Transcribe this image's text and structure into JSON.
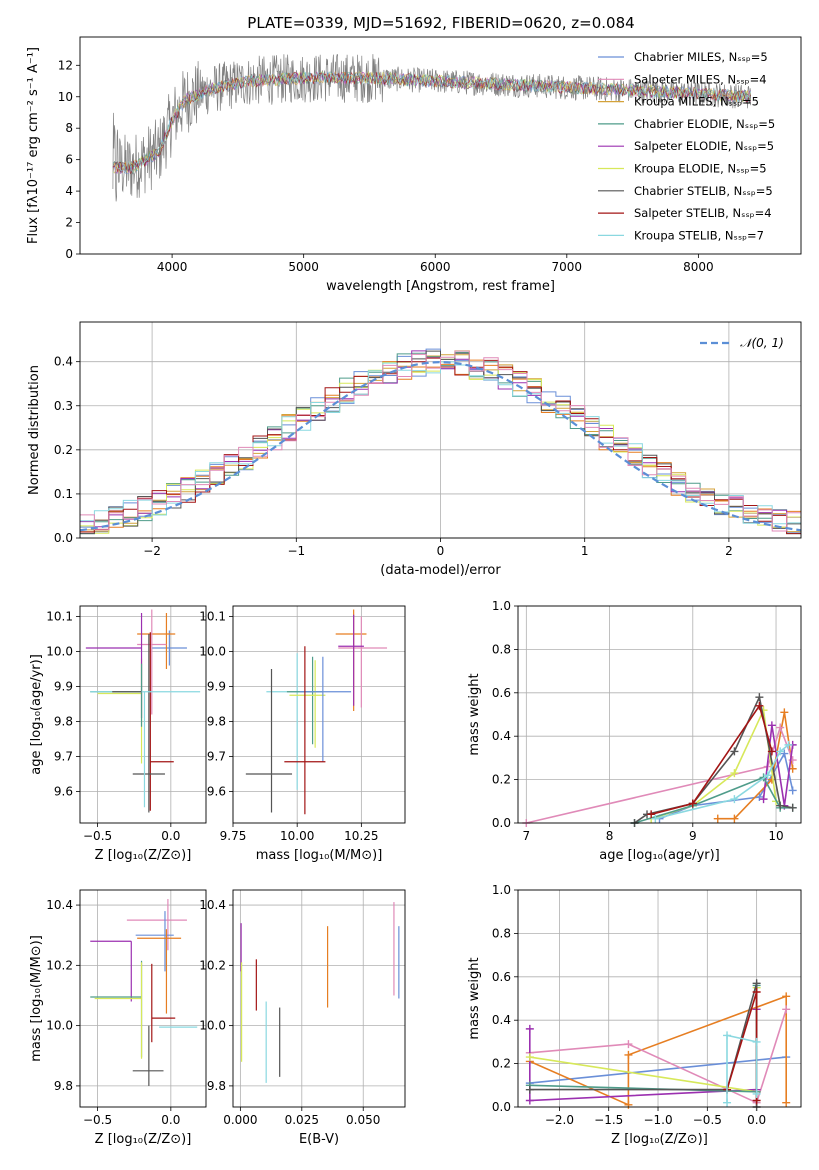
{
  "figure": {
    "title": "PLATE=0339, MJD=51692, FIBERID=0620, z=0.084"
  },
  "colors": {
    "data": "#808080",
    "series": [
      "#6a8fd8",
      "#e67e22",
      "#d4a23a",
      "#4f9c8a",
      "#9b30b0",
      "#d7e85a",
      "#555555",
      "#a31515",
      "#8ad8e0",
      "#e08ab8"
    ]
  },
  "chart_data": [
    {
      "id": "spectrum",
      "type": "line",
      "xlabel": "wavelength [Angstrom, rest frame]",
      "ylabel": "Flux [fλ10⁻¹⁷ erg cm⁻² s⁻¹ A⁻¹]",
      "xlim": [
        3300,
        8780
      ],
      "ylim": [
        0,
        13.8
      ],
      "xticks": [
        "4000",
        "5000",
        "6000",
        "7000",
        "8000"
      ],
      "yticks": [
        "0",
        "2",
        "4",
        "6",
        "8",
        "10",
        "12"
      ],
      "grid": false,
      "legend_position": "right",
      "data_range": [
        3550,
        8400
      ],
      "legend": [
        {
          "label": "Chabrier MILES, Nₛₛₚ=5",
          "color": "#6a8fd8"
        },
        {
          "label": "Salpeter MILES, Nₛₛₚ=4",
          "color": "#e08ab8"
        },
        {
          "label": "Kroupa MILES, Nₛₛₚ=5",
          "color": "#d4a23a"
        },
        {
          "label": "Chabrier ELODIE, Nₛₛₚ=5",
          "color": "#4f9c8a"
        },
        {
          "label": "Salpeter ELODIE, Nₛₛₚ=5",
          "color": "#9b30b0"
        },
        {
          "label": "Kroupa ELODIE, Nₛₛₚ=5",
          "color": "#d7e85a"
        },
        {
          "label": "Chabrier STELIB, Nₛₛₚ=5",
          "color": "#555555"
        },
        {
          "label": "Salpeter STELIB, Nₛₛₚ=4",
          "color": "#a31515"
        },
        {
          "label": "Kroupa STELIB, Nₛₛₚ=7",
          "color": "#8ad8e0"
        }
      ],
      "continuum": [
        [
          3550,
          5.5
        ],
        [
          3700,
          5.5
        ],
        [
          3900,
          6.5
        ],
        [
          4000,
          8.5
        ],
        [
          4100,
          9.8
        ],
        [
          4300,
          10.5
        ],
        [
          4600,
          11.0
        ],
        [
          5000,
          11.2
        ],
        [
          5500,
          11.2
        ],
        [
          6000,
          11.0
        ],
        [
          6500,
          10.8
        ],
        [
          7000,
          10.6
        ],
        [
          7500,
          10.4
        ],
        [
          8000,
          10.2
        ],
        [
          8400,
          10.0
        ]
      ]
    },
    {
      "id": "residuals",
      "type": "step",
      "xlabel": "(data-model)/error",
      "ylabel": "Normed distribution",
      "xlim": [
        -2.5,
        2.5
      ],
      "ylim": [
        0,
        0.49
      ],
      "xticks": [
        "−2",
        "−1",
        "0",
        "1",
        "2"
      ],
      "yticks": [
        "0.0",
        "0.1",
        "0.2",
        "0.3",
        "0.4"
      ],
      "grid": true,
      "legend_position": "top-right",
      "legend": "𝒩(0, 1)",
      "gaussian": {
        "mu": 0,
        "sigma": 1,
        "color": "#5b8fd6"
      },
      "bin_width": 0.1
    },
    {
      "id": "age-vs-Z",
      "type": "errorbar",
      "xlabel": "Z [log₁₀(Z/Z⊙)]",
      "ylabel": "age  [log₁₀(age/yr)]",
      "xlim": [
        -0.62,
        0.24
      ],
      "ylim": [
        9.51,
        10.13
      ],
      "xticks": [
        "−0.5",
        "0.0"
      ],
      "yticks": [
        "9.6",
        "9.7",
        "9.8",
        "9.9",
        "10.0",
        "10.1"
      ],
      "grid": true,
      "points": [
        {
          "x": -0.01,
          "y": 10.01,
          "xerr": [
            0.12,
            0.12
          ],
          "yerr": [
            0.05,
            0.05
          ],
          "c": 0
        },
        {
          "x": -0.03,
          "y": 10.05,
          "xerr": [
            0.2,
            0.06
          ],
          "yerr": [
            0.1,
            0.06
          ],
          "c": 1
        },
        {
          "x": -0.2,
          "y": 9.88,
          "xerr": [
            0.3,
            0.0
          ],
          "yerr": [
            0.2,
            0.1
          ],
          "c": 5
        },
        {
          "x": -0.13,
          "y": 10.02,
          "xerr": [
            0.1,
            0.1
          ],
          "yerr": [
            0.2,
            0.1
          ],
          "c": 9
        },
        {
          "x": -0.2,
          "y": 10.01,
          "xerr": [
            0.38,
            0.0
          ],
          "yerr": [
            0.2,
            0.1
          ],
          "c": 4
        },
        {
          "x": -0.2,
          "y": 9.885,
          "xerr": [
            0.35,
            0.0
          ],
          "yerr": [
            0.1,
            0.08
          ],
          "c": 3
        },
        {
          "x": -0.14,
          "y": 9.685,
          "xerr": [
            0.0,
            0.16
          ],
          "yerr": [
            0.14,
            0.37
          ],
          "c": 7
        },
        {
          "x": -0.15,
          "y": 9.65,
          "xerr": [
            0.11,
            0.11
          ],
          "yerr": [
            0.11,
            0.4
          ],
          "c": 6
        },
        {
          "x": -0.18,
          "y": 9.885,
          "xerr": [
            0.37,
            0.38
          ],
          "yerr": [
            0.33,
            0.0
          ],
          "c": 8
        },
        {
          "x": -0.4,
          "y": 9.885,
          "xerr": [
            0.0,
            0.2
          ],
          "yerr": [
            0.0,
            0.0
          ],
          "c": 6
        }
      ]
    },
    {
      "id": "age-vs-mass",
      "type": "errorbar",
      "xlabel": "mass [log₁₀(M/M⊙)]",
      "ylabel": "",
      "xlim": [
        9.75,
        10.42
      ],
      "ylim": [
        9.51,
        10.13
      ],
      "xticks": [
        "9.75",
        "10.00",
        "10.25"
      ],
      "yticks": [
        "9.6",
        "9.7",
        "9.8",
        "9.9",
        "10.0",
        "10.1"
      ],
      "grid": true,
      "points": [
        {
          "x": 10.22,
          "y": 10.05,
          "xerr": [
            0.07,
            0.05
          ],
          "yerr": [
            0.22,
            0.07
          ],
          "c": 1
        },
        {
          "x": 10.25,
          "y": 10.01,
          "xerr": [
            0.09,
            0.1
          ],
          "yerr": [
            0.17,
            0.09
          ],
          "c": 9
        },
        {
          "x": 10.22,
          "y": 10.015,
          "xerr": [
            0.06,
            0.04
          ],
          "yerr": [
            0.17,
            0.09
          ],
          "c": 4
        },
        {
          "x": 10.0,
          "y": 9.885,
          "xerr": [
            0.12,
            0.06
          ],
          "yerr": [
            0.28,
            0.11
          ],
          "c": 8
        },
        {
          "x": 10.06,
          "y": 9.885,
          "xerr": [
            0.1,
            0.04
          ],
          "yerr": [
            0.15,
            0.1
          ],
          "c": 3
        },
        {
          "x": 10.07,
          "y": 9.875,
          "xerr": [
            0.1,
            0.04
          ],
          "yerr": [
            0.15,
            0.1
          ],
          "c": 5
        },
        {
          "x": 10.1,
          "y": 9.885,
          "xerr": [
            0.09,
            0.11
          ],
          "yerr": [
            0.2,
            0.1
          ],
          "c": 0
        },
        {
          "x": 10.03,
          "y": 9.685,
          "xerr": [
            0.08,
            0.08
          ],
          "yerr": [
            0.15,
            0.33
          ],
          "c": 7
        },
        {
          "x": 9.9,
          "y": 9.65,
          "xerr": [
            0.1,
            0.08
          ],
          "yerr": [
            0.11,
            0.3
          ],
          "c": 6
        }
      ]
    },
    {
      "id": "mass-weight-vs-age",
      "type": "line",
      "xlabel": "age  [log₁₀(age/yr)]",
      "ylabel": "mass weight",
      "xlim": [
        6.9,
        10.3
      ],
      "ylim": [
        0,
        1.0
      ],
      "xticks": [
        "7",
        "8",
        "9",
        "10"
      ],
      "yticks": [
        "0.0",
        "0.2",
        "0.4",
        "0.6",
        "0.8",
        "1.0"
      ],
      "grid": true,
      "series": [
        {
          "c": 0,
          "x": [
            8.6,
            9.0,
            9.8,
            10.1,
            10.2
          ],
          "y": [
            0.02,
            0.08,
            0.12,
            0.32,
            0.15
          ]
        },
        {
          "c": 1,
          "x": [
            9.3,
            9.5,
            9.95,
            10.1,
            10.2
          ],
          "y": [
            0.02,
            0.02,
            0.2,
            0.51,
            0.25
          ]
        },
        {
          "c": 9,
          "x": [
            7.0,
            9.9,
            10.05,
            10.2
          ],
          "y": [
            0.0,
            0.26,
            0.44,
            0.29
          ]
        },
        {
          "c": 4,
          "x": [
            9.85,
            9.95,
            10.1,
            10.2
          ],
          "y": [
            0.11,
            0.45,
            0.08,
            0.36
          ]
        },
        {
          "c": 5,
          "x": [
            8.5,
            9.0,
            9.5,
            9.85,
            10.0
          ],
          "y": [
            0.02,
            0.08,
            0.23,
            0.52,
            0.1
          ]
        },
        {
          "c": 3,
          "x": [
            8.3,
            9.0,
            9.85,
            10.05,
            10.2
          ],
          "y": [
            0.0,
            0.08,
            0.21,
            0.07,
            0.07
          ]
        },
        {
          "c": 6,
          "x": [
            8.3,
            8.45,
            9.0,
            9.5,
            9.8,
            10.05,
            10.2
          ],
          "y": [
            0.0,
            0.04,
            0.09,
            0.33,
            0.58,
            0.08,
            0.07
          ]
        },
        {
          "c": 7,
          "x": [
            8.5,
            9.0,
            9.8,
            9.95
          ],
          "y": [
            0.04,
            0.09,
            0.54,
            0.33
          ]
        },
        {
          "c": 8,
          "x": [
            8.55,
            9.5,
            9.9,
            10.05,
            10.15
          ],
          "y": [
            0.02,
            0.11,
            0.22,
            0.33,
            0.36
          ]
        }
      ]
    },
    {
      "id": "mass-vs-Z",
      "type": "errorbar",
      "xlabel": "Z [log₁₀(Z/Z⊙)]",
      "ylabel": "mass [log₁₀(M/M⊙)]",
      "xlim": [
        -0.62,
        0.24
      ],
      "ylim": [
        9.73,
        10.45
      ],
      "xticks": [
        "−0.5",
        "0.0"
      ],
      "yticks": [
        "9.8",
        "10.0",
        "10.2",
        "10.4"
      ],
      "grid": true,
      "points": [
        {
          "x": -0.02,
          "y": 10.35,
          "xerr": [
            0.28,
            0.13
          ],
          "yerr": [
            0.1,
            0.07
          ],
          "c": 9
        },
        {
          "x": -0.04,
          "y": 10.3,
          "xerr": [
            0.2,
            0.06
          ],
          "yerr": [
            0.12,
            0.08
          ],
          "c": 0
        },
        {
          "x": -0.03,
          "y": 10.29,
          "xerr": [
            0.2,
            0.1
          ],
          "yerr": [
            0.25,
            0.03
          ],
          "c": 1
        },
        {
          "x": -0.27,
          "y": 10.28,
          "xerr": [
            0.28,
            0.0
          ],
          "yerr": [
            0.2,
            0.0
          ],
          "c": 4
        },
        {
          "x": -0.2,
          "y": 10.095,
          "xerr": [
            0.35,
            0.0
          ],
          "yerr": [
            0.2,
            0.12
          ],
          "c": 3
        },
        {
          "x": -0.2,
          "y": 10.09,
          "xerr": [
            0.32,
            0.0
          ],
          "yerr": [
            0.2,
            0.12
          ],
          "c": 5
        },
        {
          "x": -0.13,
          "y": 10.025,
          "xerr": [
            0.0,
            0.16
          ],
          "yerr": [
            0.08,
            0.18
          ],
          "c": 7
        },
        {
          "x": -0.02,
          "y": 9.995,
          "xerr": [
            0.06,
            0.2
          ],
          "yerr": [
            0.0,
            0.0
          ],
          "c": 8
        },
        {
          "x": -0.15,
          "y": 9.85,
          "xerr": [
            0.11,
            0.1
          ],
          "yerr": [
            0.05,
            0.15
          ],
          "c": 6
        }
      ]
    },
    {
      "id": "mass-vs-EBV",
      "type": "errorbar",
      "xlabel": "E(B-V)",
      "ylabel": "",
      "xlim": [
        -0.003,
        0.067
      ],
      "ylim": [
        9.73,
        10.45
      ],
      "xticks": [
        "0.000",
        "0.025",
        "0.050"
      ],
      "yticks": [
        "9.8",
        "10.0",
        "10.2",
        "10.4"
      ],
      "grid": true,
      "points": [
        {
          "x": 0.0003,
          "y": 10.24,
          "xerr": [
            0,
            0
          ],
          "yerr": [
            0.06,
            0.1
          ],
          "c": 4
        },
        {
          "x": 0.0005,
          "y": 10.08,
          "xerr": [
            0,
            0
          ],
          "yerr": [
            0.2,
            0.13
          ],
          "c": 5
        },
        {
          "x": 0.0065,
          "y": 10.05,
          "xerr": [
            0,
            0
          ],
          "yerr": [
            0.0,
            0.17
          ],
          "c": 7
        },
        {
          "x": 0.0105,
          "y": 9.95,
          "xerr": [
            0,
            0
          ],
          "yerr": [
            0.14,
            0.13
          ],
          "c": 8
        },
        {
          "x": 0.016,
          "y": 9.9,
          "xerr": [
            0,
            0
          ],
          "yerr": [
            0.07,
            0.16
          ],
          "c": 6
        },
        {
          "x": 0.0355,
          "y": 10.2,
          "xerr": [
            0,
            0
          ],
          "yerr": [
            0.14,
            0.13
          ],
          "c": 1
        },
        {
          "x": 0.0625,
          "y": 10.3,
          "xerr": [
            0,
            0
          ],
          "yerr": [
            0.2,
            0.11
          ],
          "c": 9
        },
        {
          "x": 0.0645,
          "y": 10.23,
          "xerr": [
            0,
            0
          ],
          "yerr": [
            0.14,
            0.1
          ],
          "c": 0
        }
      ]
    },
    {
      "id": "mass-weight-vs-Z",
      "type": "line",
      "xlabel": "Z [log₁₀(Z/Z⊙)]",
      "ylabel": "mass weight",
      "xlim": [
        -2.42,
        0.45
      ],
      "ylim": [
        0,
        1.0
      ],
      "xticks": [
        "−2.0",
        "−1.5",
        "−1.0",
        "−0.5",
        "0.0"
      ],
      "yticks": [
        "0.0",
        "0.2",
        "0.4",
        "0.6",
        "0.8",
        "1.0"
      ],
      "grid": true,
      "series": [
        {
          "c": 0,
          "x": [
            -2.3,
            0.3
          ],
          "y": [
            0.11,
            0.23
          ]
        },
        {
          "c": 1,
          "x": [
            -2.3,
            -1.3,
            -1.3,
            0.3,
            0.3
          ],
          "y": [
            0.21,
            0.01,
            0.24,
            0.51,
            0.02
          ]
        },
        {
          "c": 9,
          "x": [
            -2.3,
            -1.3,
            0.0,
            0.3
          ],
          "y": [
            0.25,
            0.29,
            0.02,
            0.45
          ]
        },
        {
          "c": 4,
          "x": [
            -2.3,
            -2.3,
            0.0,
            0.0
          ],
          "y": [
            0.36,
            0.03,
            0.08,
            0.45
          ]
        },
        {
          "c": 5,
          "x": [
            -2.3,
            0.0,
            0.0
          ],
          "y": [
            0.23,
            0.07,
            0.55
          ]
        },
        {
          "c": 3,
          "x": [
            -2.3,
            0.0,
            0.0
          ],
          "y": [
            0.1,
            0.07,
            0.56
          ]
        },
        {
          "c": 6,
          "x": [
            -2.3,
            -0.3,
            0.0,
            0.0
          ],
          "y": [
            0.08,
            0.08,
            0.57,
            0.0
          ]
        },
        {
          "c": 7,
          "x": [
            -0.3,
            0.0,
            0.0
          ],
          "y": [
            0.08,
            0.53,
            0.03
          ]
        },
        {
          "c": 8,
          "x": [
            -0.3,
            -0.3,
            0.0,
            0.0
          ],
          "y": [
            0.02,
            0.33,
            0.3,
            0.06
          ]
        }
      ]
    }
  ]
}
